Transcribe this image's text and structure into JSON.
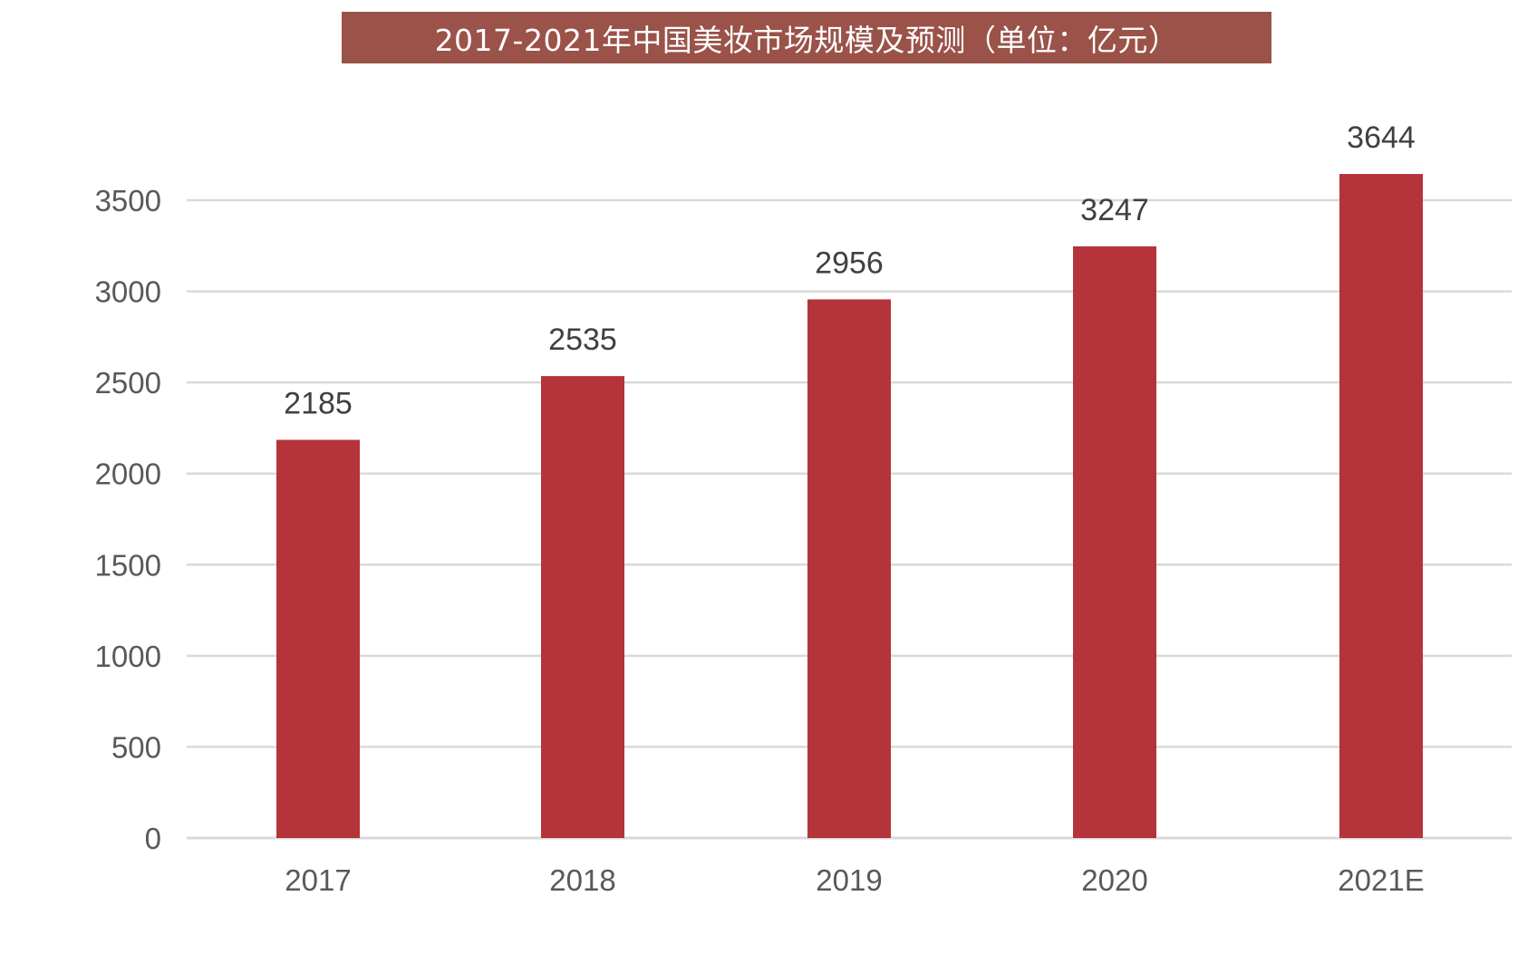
{
  "title": "2017-2021年中国美妆市场规模及预测（单位：亿元）",
  "colors": {
    "bar": "#b5333a",
    "title_background": "#9a5249",
    "title_text": "#ffffff",
    "gridline": "#d9d9d9",
    "tick_text": "#595959",
    "data_label_text": "#404040"
  },
  "chart_data": {
    "type": "bar",
    "categories": [
      "2017",
      "2018",
      "2019",
      "2020",
      "2021E"
    ],
    "values": [
      2185,
      2535,
      2956,
      3247,
      3644
    ],
    "data_labels": [
      "2185",
      "2535",
      "2956",
      "3247",
      "3644"
    ],
    "yticks": [
      0,
      500,
      1000,
      1500,
      2000,
      2500,
      3000,
      3500
    ],
    "ylim": [
      0,
      4000
    ],
    "grid": true,
    "legend": "none"
  }
}
